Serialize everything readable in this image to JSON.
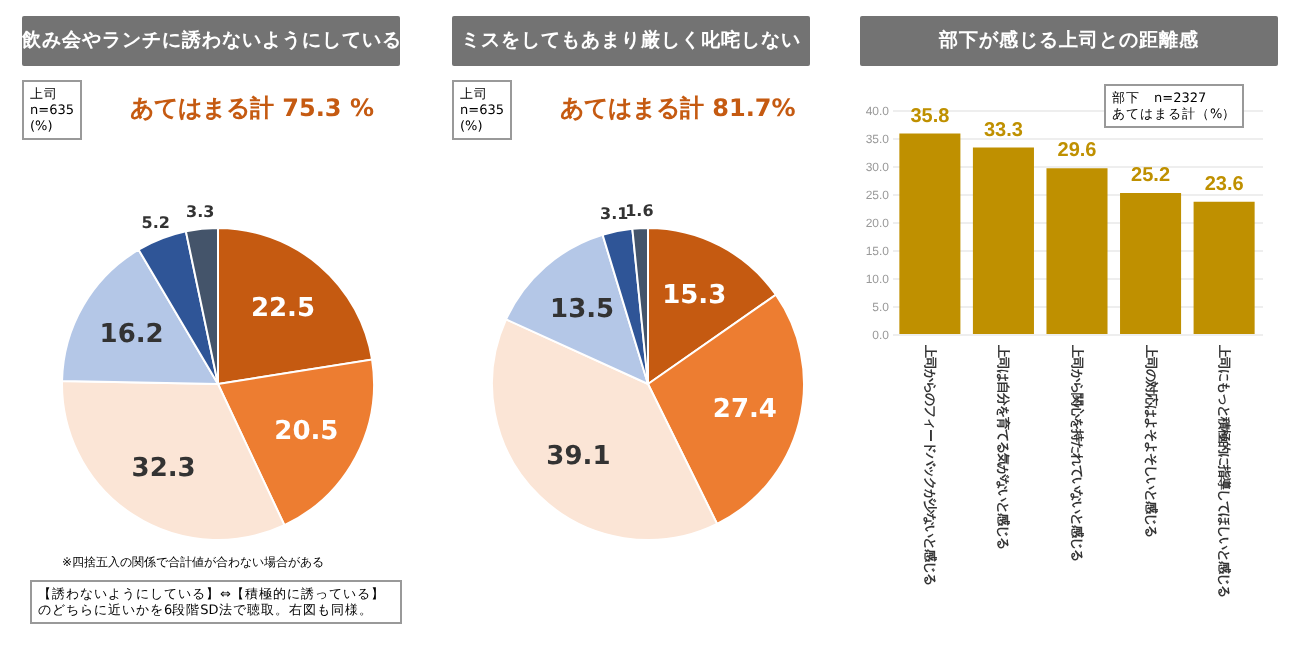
{
  "chart_data": [
    {
      "type": "pie",
      "title": "飲み会やランチに誘わないようにしている",
      "categories": [
        null,
        null,
        null,
        null,
        null,
        null
      ],
      "values": [
        22.5,
        20.5,
        32.3,
        16.2,
        5.2,
        3.3
      ],
      "colors": [
        "#c55a11",
        "#ed7d31",
        "#fbe5d6",
        "#b4c7e7",
        "#2f5597",
        "#44546a"
      ],
      "data_labels": true,
      "legend": false,
      "annotations": [
        "上司\nn=635\n(%)",
        "あてはまる計 75.3 %",
        "※四捨五入の関係で合計値が合わない場合がある",
        "【誘わないようにしている】⇔【積極的に誘っている】のどちらに近いかを6段階SD法で聴取。右図も同様。"
      ]
    },
    {
      "type": "pie",
      "title": "ミスをしてもあまり厳しく叱咤しない",
      "categories": [
        null,
        null,
        null,
        null,
        null,
        null
      ],
      "values": [
        15.3,
        27.4,
        39.1,
        13.5,
        3.1,
        1.6
      ],
      "colors": [
        "#c55a11",
        "#ed7d31",
        "#fbe5d6",
        "#b4c7e7",
        "#2f5597",
        "#44546a"
      ],
      "data_labels": true,
      "legend": false,
      "annotations": [
        "上司\nn=635\n(%)",
        "あてはまる計 81.7%"
      ]
    },
    {
      "type": "bar",
      "title": "部下が感じる上司との距離感",
      "categories": [
        "上司からのフィードバックが少ないと感じる",
        "上司は自分を育てる気がないと感じる",
        "上司から関心を持たれていないと感じる",
        "上司の対応はよそよそしいと感じる",
        "上司にもっと積極的に指導してほしいと感じる"
      ],
      "values": [
        35.8,
        33.3,
        29.6,
        25.2,
        23.6
      ],
      "color": "#bf9000",
      "data_labels": true,
      "grid": "y",
      "ylim": [
        0,
        40
      ],
      "yticks": [
        {
          "value": 0,
          "label": "0.0"
        },
        {
          "value": 5,
          "label": "5.0"
        },
        {
          "value": 10,
          "label": "10.0"
        },
        {
          "value": 15,
          "label": "15.0"
        },
        {
          "value": 20,
          "label": "20.0"
        },
        {
          "value": 25,
          "label": "25.0"
        },
        {
          "value": 30,
          "label": "30.0"
        },
        {
          "value": 35,
          "label": "35.0"
        },
        {
          "value": 40,
          "label": "40.0"
        }
      ],
      "annotations": [
        "部下　n=2327\nあてはまる計（%）"
      ]
    }
  ]
}
